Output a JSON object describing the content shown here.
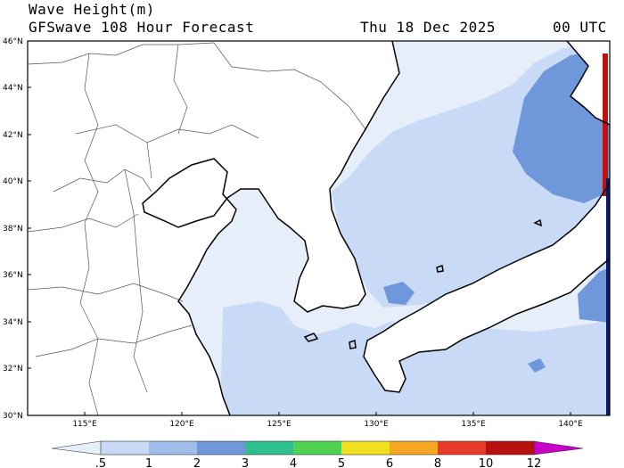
{
  "header": {
    "title": "Wave Height(m)",
    "subtitle": "GFSwave 108 Hour Forecast",
    "date": "Thu 18 Dec 2025",
    "time": "00 UTC"
  },
  "axes": {
    "lat_labels": [
      "46°N",
      "44°N",
      "42°N",
      "40°N",
      "38°N",
      "36°N",
      "34°N",
      "32°N",
      "30°N"
    ],
    "lon_labels": [
      "115°E",
      "120°E",
      "125°E",
      "130°E",
      "135°E",
      "140°E"
    ]
  },
  "legend": {
    "labels": [
      ".5",
      "1",
      "2",
      "3",
      "4",
      "5",
      "6",
      "8",
      "10",
      "12"
    ],
    "colors": [
      "#e6eefa",
      "#c8daf5",
      "#9ebdea",
      "#6f98db",
      "#2fbf8f",
      "#4fd24f",
      "#f0e020",
      "#f5a623",
      "#e83a2a",
      "#b80f0f",
      "#c800c8"
    ]
  },
  "colors": {
    "land": "#ffffff",
    "sea_low": "#e6eefa",
    "sea_mid": "#c8daf5",
    "sea_high": "#9ebdea",
    "sea_peak": "#6f98db",
    "edge_red": "#c01010",
    "edge_navy": "#0a1a60"
  }
}
